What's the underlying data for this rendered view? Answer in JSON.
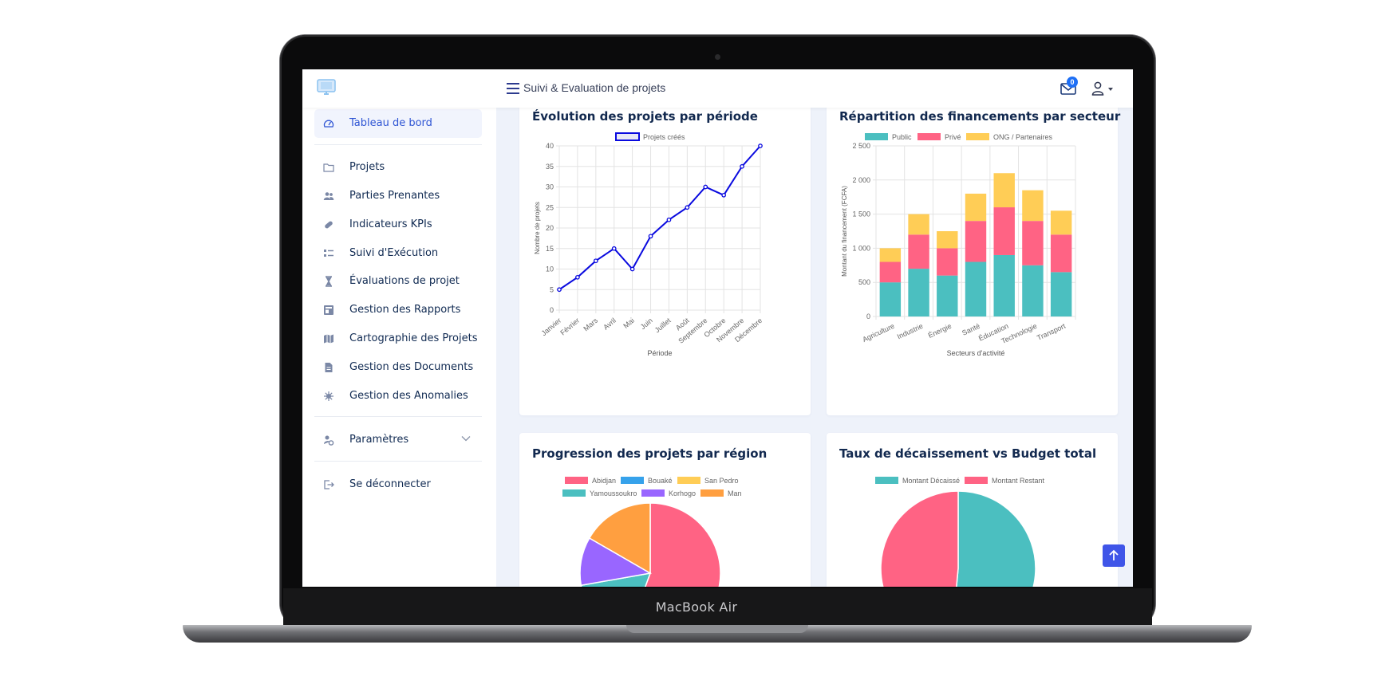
{
  "device": {
    "brand_label": "MacBook Air"
  },
  "topbar": {
    "logo_icon": "monitor-logo-icon",
    "menu_icon": "hamburger-icon",
    "title": "Suivi & Evaluation de projets",
    "mail_icon": "envelope-icon",
    "notification_count": "0",
    "user_icon": "user-icon"
  },
  "sidebar": {
    "items": [
      {
        "label": "Tableau de bord",
        "icon": "dashboard-gauge-icon",
        "active": true
      },
      {
        "label": "Projets",
        "icon": "folder-icon"
      },
      {
        "label": "Parties Prenantes",
        "icon": "users-icon"
      },
      {
        "label": "Indicateurs KPIs",
        "icon": "pill-icon"
      },
      {
        "label": "Suivi d'Exécution",
        "icon": "checklist-icon"
      },
      {
        "label": "Évaluations de projet",
        "icon": "hourglass-icon"
      },
      {
        "label": "Gestion des Rapports",
        "icon": "report-icon"
      },
      {
        "label": "Cartographie des Projets",
        "icon": "map-icon"
      },
      {
        "label": "Gestion des Documents",
        "icon": "document-icon"
      },
      {
        "label": "Gestion des Anomalies",
        "icon": "bug-icon"
      }
    ],
    "settings": {
      "label": "Paramètres",
      "icon": "settings-icon"
    },
    "logout": {
      "label": "Se déconnecter",
      "icon": "logout-icon"
    }
  },
  "colors": {
    "blue_line": "#0a0adf",
    "teal": "#4bbfc0",
    "pink": "#ff6384",
    "yellow": "#ffcd56",
    "blue": "#36a2eb",
    "purple": "#9966ff",
    "orange": "#ff9f40",
    "accent": "#3f55e8"
  },
  "chart_data": [
    {
      "type": "line",
      "title": "Évolution des projets par période",
      "categories": [
        "Janvier",
        "Février",
        "Mars",
        "Avril",
        "Mai",
        "Juin",
        "Juillet",
        "Août",
        "Septembre",
        "Octobre",
        "Novembre",
        "Décembre"
      ],
      "series": [
        {
          "name": "Projets créés",
          "values": [
            5,
            8,
            12,
            15,
            10,
            18,
            22,
            25,
            30,
            28,
            35,
            40
          ]
        }
      ],
      "xlabel": "Période",
      "ylabel": "Nombre de projets",
      "ylim": [
        0,
        40
      ],
      "yticks": [
        "0",
        "5",
        "10",
        "15",
        "20",
        "25",
        "30",
        "35",
        "40"
      ],
      "grid": true,
      "legend": "top"
    },
    {
      "type": "bar",
      "stacked": true,
      "title": "Répartition des financements par secteur",
      "categories": [
        "Agriculture",
        "Industrie",
        "Énergie",
        "Santé",
        "Éducation",
        "Technologie",
        "Transport"
      ],
      "series": [
        {
          "name": "Public",
          "values": [
            500,
            700,
            600,
            800,
            900,
            750,
            650
          ]
        },
        {
          "name": "Privé",
          "values": [
            300,
            500,
            400,
            600,
            700,
            650,
            550
          ]
        },
        {
          "name": "ONG / Partenaires",
          "values": [
            200,
            300,
            250,
            400,
            500,
            450,
            350
          ]
        }
      ],
      "xlabel": "Secteurs d'activité",
      "ylabel": "Montant du financement (FCFA)",
      "ylim": [
        0,
        2500
      ],
      "yticks": [
        "0",
        "500",
        "1 000",
        "1 500",
        "2 000",
        "2 500"
      ],
      "grid": true,
      "legend": "top"
    },
    {
      "type": "pie",
      "title": "Progression des projets par région",
      "labels": [
        "Abidjan",
        "Bouaké",
        "San Pedro",
        "Yamoussoukro",
        "Korhogo",
        "Man"
      ],
      "values": [
        50,
        0,
        0,
        15,
        10,
        15
      ],
      "legend": "top"
    },
    {
      "type": "pie",
      "title": "Taux de décaissement vs Budget total",
      "labels": [
        "Montant Décaissé",
        "Montant Restant"
      ],
      "values": [
        51.5,
        48.5
      ],
      "legend": "top"
    }
  ]
}
